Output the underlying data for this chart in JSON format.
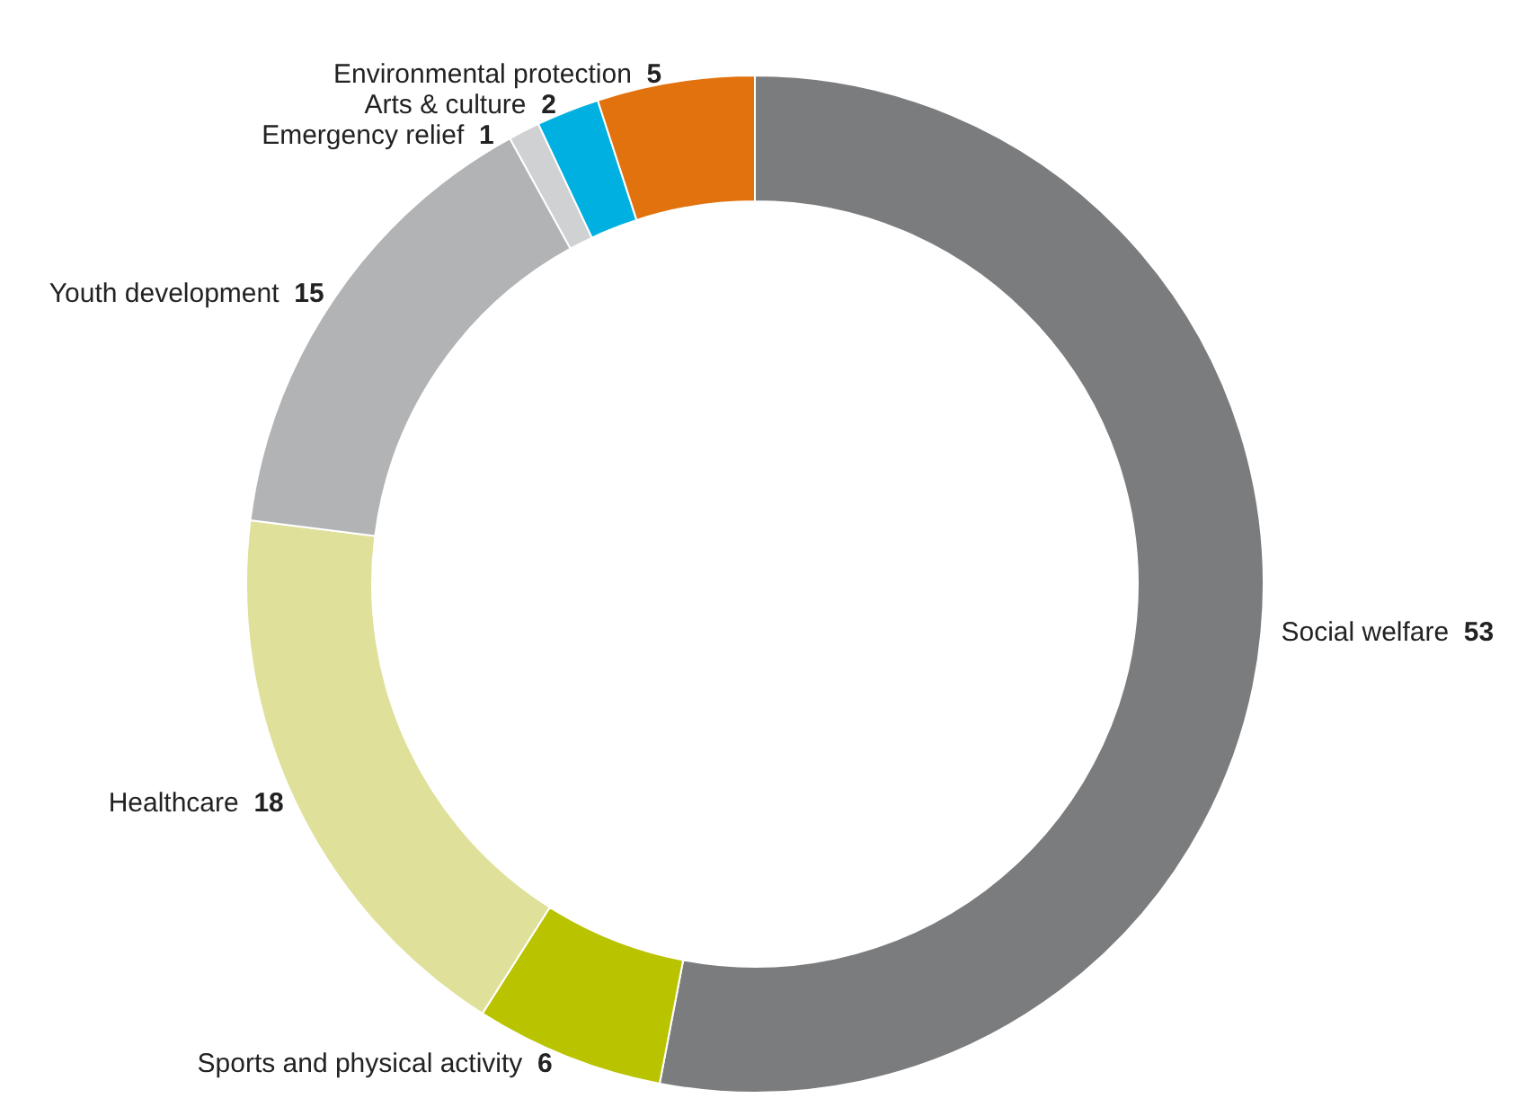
{
  "chart_data": {
    "type": "donut",
    "categories": [
      "Social welfare",
      "Sports and physical activity",
      "Healthcare",
      "Youth development",
      "Emergency relief",
      "Arts & culture",
      "Environmental protection"
    ],
    "values": [
      53,
      6,
      18,
      15,
      1,
      2,
      5
    ],
    "colors": [
      "#7b7c7e",
      "#b9c300",
      "#dfe09a",
      "#b2b3b5",
      "#d0d1d3",
      "#00b0e0",
      "#e2720e"
    ],
    "data_labels": true,
    "legend": false
  }
}
